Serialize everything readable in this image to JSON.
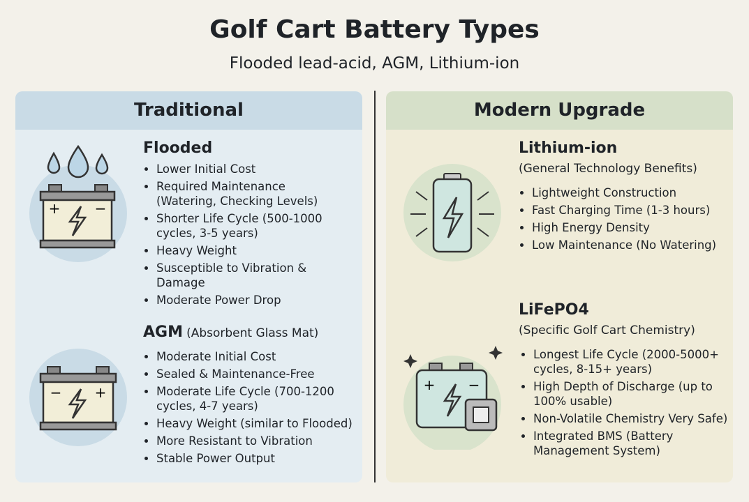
{
  "header": {
    "title": "Golf Cart Battery Types",
    "subtitle": "Flooded lead-acid, AGM, Lithium-ion"
  },
  "panels": [
    {
      "heading": "Traditional",
      "items": [
        {
          "name": "Flooded",
          "bullets": [
            "Lower Initial Cost",
            "Required Maintenance (Watering, Checking Levels)",
            "Shorter Life Cycle (500-1000 cycles, 3-5 years)",
            "Heavy Weight",
            "Susceptible to Vibration & Damage",
            "Moderate Power Drop"
          ]
        },
        {
          "name": "AGM",
          "note": "(Absorbent Glass Mat)",
          "bullets": [
            "Moderate Initial Cost",
            "Sealed & Maintenance-Free",
            "Moderate Life Cycle (700-1200 cycles, 4-7 years)",
            "Heavy Weight (similar to Flooded)",
            "More Resistant to Vibration",
            "Stable Power Output"
          ]
        }
      ]
    },
    {
      "heading": "Modern Upgrade",
      "items": [
        {
          "name": "Lithium-ion",
          "note": "(General Technology Benefits)",
          "bullets": [
            "Lightweight Construction",
            "Fast Charging Time (1-3 hours)",
            "High Energy Density",
            "Low Maintenance (No Watering)"
          ]
        },
        {
          "name": "LiFePO4",
          "note": "(Specific Golf Cart Chemistry)",
          "bullets": [
            "Longest Life Cycle (2000-5000+ cycles, 8-15+ years)",
            "High Depth of Discharge (up to 100% usable)",
            "Non-Volatile Chemistry Very Safe)",
            "Integrated BMS (Battery Management System)"
          ]
        }
      ]
    }
  ]
}
